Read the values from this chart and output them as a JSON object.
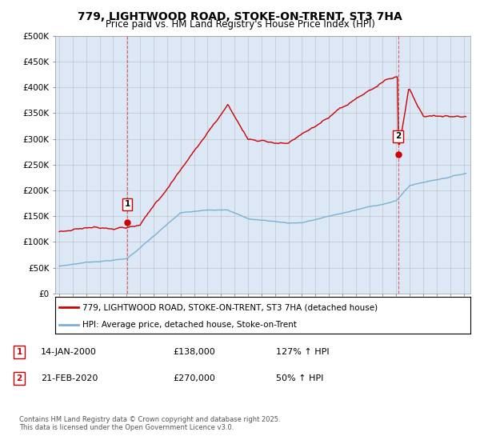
{
  "title": "779, LIGHTWOOD ROAD, STOKE-ON-TRENT, ST3 7HA",
  "subtitle": "Price paid vs. HM Land Registry's House Price Index (HPI)",
  "red_label": "779, LIGHTWOOD ROAD, STOKE-ON-TRENT, ST3 7HA (detached house)",
  "blue_label": "HPI: Average price, detached house, Stoke-on-Trent",
  "footnote": "Contains HM Land Registry data © Crown copyright and database right 2025.\nThis data is licensed under the Open Government Licence v3.0.",
  "point1_date": "14-JAN-2000",
  "point1_price": "£138,000",
  "point1_hpi": "127% ↑ HPI",
  "point2_date": "21-FEB-2020",
  "point2_price": "£270,000",
  "point2_hpi": "50% ↑ HPI",
  "ylim": [
    0,
    500000
  ],
  "xlim_start": 1994.7,
  "xlim_end": 2025.5,
  "red_color": "#cc0000",
  "blue_color": "#7bafd4",
  "vline_color": "#dd4444",
  "grid_color": "#bbbbbb",
  "plot_bg_color": "#dce8f5",
  "background_color": "#ffffff",
  "title_fontsize": 10,
  "subtitle_fontsize": 8.5
}
